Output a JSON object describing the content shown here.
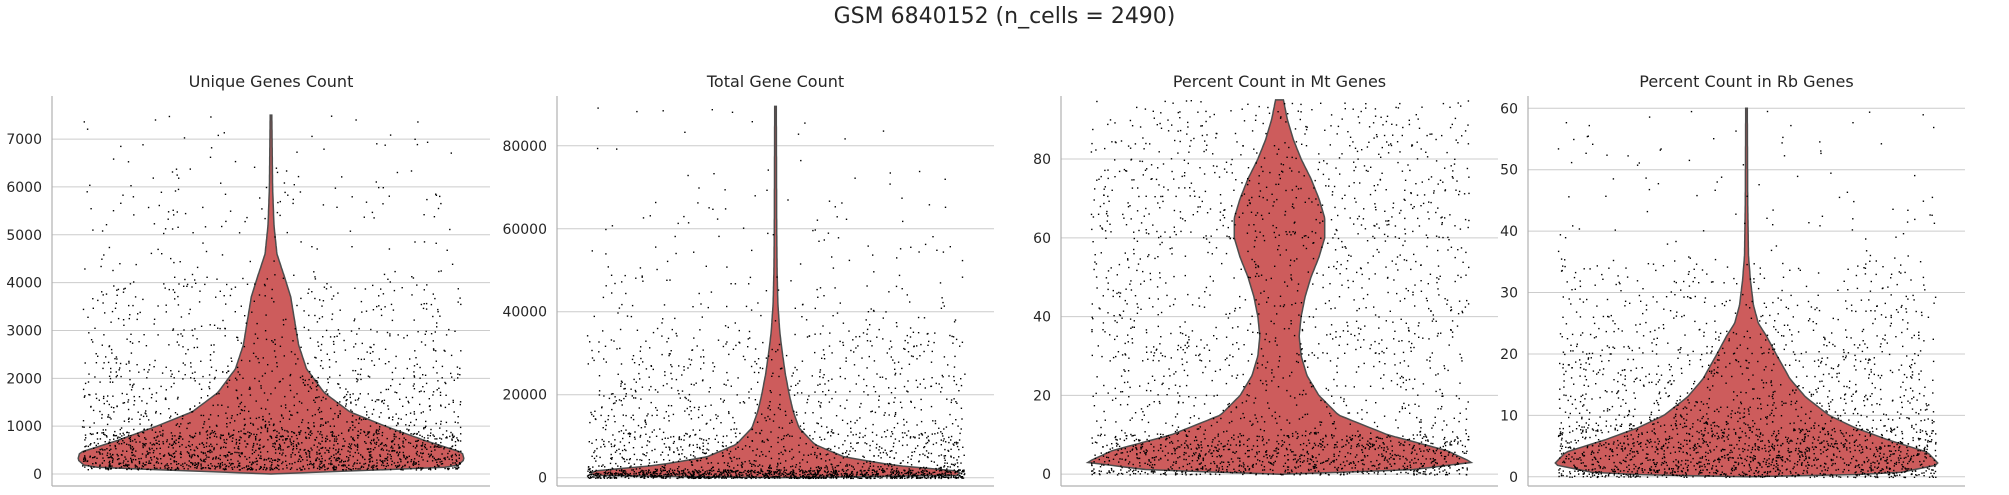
{
  "figure": {
    "title": "GSM 6840152 (n_cells = 2490)"
  },
  "colors": {
    "violin_fill": "#cd5c5c",
    "violin_edge": "#4d4d4d",
    "points": "#000000",
    "grid": "#cccccc"
  },
  "chart_data": [
    {
      "type": "violin",
      "title": "Unique Genes Count",
      "ylim": [
        -250,
        7900
      ],
      "yticks": [
        0,
        1000,
        2000,
        3000,
        4000,
        5000,
        6000,
        7000
      ],
      "ytick_labels": [
        "0",
        "1000",
        "2000",
        "3000",
        "4000",
        "5000",
        "6000",
        "7000"
      ],
      "grid": true,
      "n_points": 2490,
      "violin_range": [
        0,
        7500
      ],
      "density_profile": [
        [
          0,
          0.0
        ],
        [
          150,
          0.94
        ],
        [
          300,
          0.98
        ],
        [
          450,
          0.97
        ],
        [
          700,
          0.78
        ],
        [
          1000,
          0.58
        ],
        [
          1300,
          0.4
        ],
        [
          1700,
          0.27
        ],
        [
          2200,
          0.18
        ],
        [
          2700,
          0.14
        ],
        [
          3200,
          0.12
        ],
        [
          3700,
          0.1
        ],
        [
          4100,
          0.07
        ],
        [
          4600,
          0.03
        ],
        [
          5200,
          0.015
        ],
        [
          6000,
          0.008
        ],
        [
          7500,
          0.004
        ]
      ],
      "points_distribution": [
        [
          100,
          900,
          0.55
        ],
        [
          900,
          2000,
          0.2
        ],
        [
          2000,
          4000,
          0.18
        ],
        [
          4000,
          6000,
          0.05
        ],
        [
          6000,
          7500,
          0.02
        ]
      ]
    },
    {
      "type": "violin",
      "title": "Total Gene Count",
      "ylim": [
        -2000,
        92000
      ],
      "yticks": [
        0,
        20000,
        40000,
        60000,
        80000
      ],
      "ytick_labels": [
        "0",
        "20000",
        "40000",
        "60000",
        "80000"
      ],
      "grid": true,
      "n_points": 2490,
      "violin_range": [
        0,
        89500
      ],
      "density_profile": [
        [
          0,
          0.0
        ],
        [
          500,
          0.92
        ],
        [
          1500,
          0.95
        ],
        [
          3000,
          0.6
        ],
        [
          5000,
          0.35
        ],
        [
          8000,
          0.2
        ],
        [
          12000,
          0.12
        ],
        [
          16000,
          0.09
        ],
        [
          20000,
          0.07
        ],
        [
          25000,
          0.05
        ],
        [
          30000,
          0.035
        ],
        [
          35000,
          0.022
        ],
        [
          42000,
          0.012
        ],
        [
          50000,
          0.008
        ],
        [
          60000,
          0.006
        ],
        [
          75000,
          0.005
        ],
        [
          89500,
          0.004
        ]
      ],
      "points_distribution": [
        [
          0,
          2000,
          0.45
        ],
        [
          2000,
          10000,
          0.22
        ],
        [
          10000,
          35000,
          0.25
        ],
        [
          35000,
          60000,
          0.06
        ],
        [
          60000,
          90000,
          0.02
        ]
      ]
    },
    {
      "type": "violin",
      "title": "Percent Count in Mt Genes",
      "ylim": [
        -3,
        96
      ],
      "yticks": [
        0,
        20,
        40,
        60,
        80
      ],
      "ytick_labels": [
        "0",
        "20",
        "40",
        "60",
        "80"
      ],
      "grid": true,
      "n_points": 2490,
      "violin_range": [
        0,
        95
      ],
      "density_profile": [
        [
          0,
          0.0
        ],
        [
          1,
          0.65
        ],
        [
          3,
          0.98
        ],
        [
          6,
          0.85
        ],
        [
          10,
          0.55
        ],
        [
          15,
          0.3
        ],
        [
          20,
          0.2
        ],
        [
          25,
          0.14
        ],
        [
          30,
          0.11
        ],
        [
          35,
          0.1
        ],
        [
          40,
          0.11
        ],
        [
          45,
          0.13
        ],
        [
          50,
          0.16
        ],
        [
          55,
          0.2
        ],
        [
          60,
          0.23
        ],
        [
          65,
          0.23
        ],
        [
          70,
          0.2
        ],
        [
          75,
          0.16
        ],
        [
          80,
          0.11
        ],
        [
          85,
          0.07
        ],
        [
          90,
          0.04
        ],
        [
          95,
          0.02
        ]
      ],
      "points_distribution": [
        [
          0,
          10,
          0.4
        ],
        [
          10,
          30,
          0.15
        ],
        [
          30,
          60,
          0.2
        ],
        [
          60,
          95,
          0.25
        ]
      ]
    },
    {
      "type": "violin",
      "title": "Percent Count in Rb Genes",
      "ylim": [
        -1.5,
        62
      ],
      "yticks": [
        0,
        10,
        20,
        30,
        40,
        50,
        60
      ],
      "ytick_labels": [
        "0",
        "10",
        "20",
        "30",
        "40",
        "50",
        "60"
      ],
      "grid": true,
      "n_points": 2490,
      "violin_range": [
        0,
        60
      ],
      "density_profile": [
        [
          0,
          0.0
        ],
        [
          0.5,
          0.75
        ],
        [
          2,
          0.98
        ],
        [
          4,
          0.92
        ],
        [
          6,
          0.72
        ],
        [
          8,
          0.55
        ],
        [
          10,
          0.42
        ],
        [
          13,
          0.3
        ],
        [
          16,
          0.22
        ],
        [
          20,
          0.15
        ],
        [
          23,
          0.1
        ],
        [
          25,
          0.06
        ],
        [
          28,
          0.035
        ],
        [
          32,
          0.02
        ],
        [
          36,
          0.01
        ],
        [
          45,
          0.006
        ],
        [
          60,
          0.004
        ]
      ],
      "points_distribution": [
        [
          0,
          8,
          0.55
        ],
        [
          8,
          20,
          0.25
        ],
        [
          20,
          35,
          0.16
        ],
        [
          35,
          60,
          0.04
        ]
      ]
    }
  ]
}
